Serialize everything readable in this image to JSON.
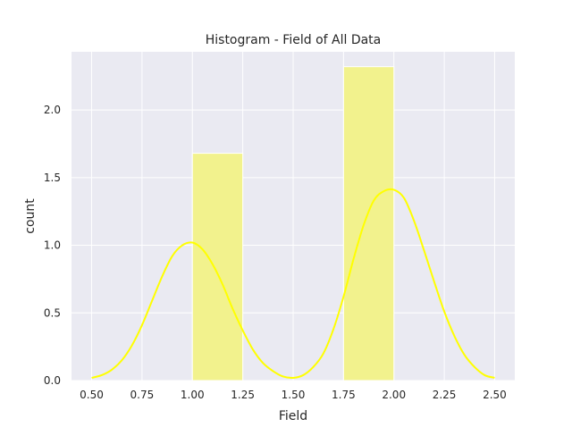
{
  "chart_data": {
    "type": "bar",
    "title": "Histogram - Field of All Data",
    "xlabel": "Field",
    "ylabel": "count",
    "xlim": [
      0.4,
      2.6
    ],
    "ylim": [
      0,
      2.43
    ],
    "grid": true,
    "x_ticks": [
      "0.50",
      "0.75",
      "1.00",
      "1.25",
      "1.50",
      "1.75",
      "2.00",
      "2.25",
      "2.50"
    ],
    "y_ticks": [
      "0.0",
      "0.5",
      "1.0",
      "1.5",
      "2.0"
    ],
    "bins": [
      {
        "x0": 1.0,
        "x1": 1.25,
        "value": 1.68
      },
      {
        "x0": 1.75,
        "x1": 2.0,
        "value": 2.32
      }
    ],
    "kde": {
      "x": [
        0.5,
        0.55,
        0.6,
        0.65,
        0.7,
        0.75,
        0.8,
        0.85,
        0.9,
        0.95,
        1.0,
        1.05,
        1.1,
        1.15,
        1.2,
        1.25,
        1.3,
        1.35,
        1.4,
        1.45,
        1.5,
        1.55,
        1.6,
        1.65,
        1.7,
        1.75,
        1.8,
        1.85,
        1.9,
        1.95,
        2.0,
        2.05,
        2.1,
        2.15,
        2.2,
        2.25,
        2.3,
        2.35,
        2.4,
        2.45,
        2.5
      ],
      "y": [
        0.02,
        0.04,
        0.08,
        0.15,
        0.26,
        0.41,
        0.59,
        0.77,
        0.92,
        1.0,
        1.02,
        0.97,
        0.86,
        0.71,
        0.53,
        0.37,
        0.23,
        0.13,
        0.07,
        0.03,
        0.02,
        0.04,
        0.1,
        0.2,
        0.38,
        0.62,
        0.9,
        1.15,
        1.33,
        1.4,
        1.41,
        1.35,
        1.18,
        0.96,
        0.73,
        0.51,
        0.33,
        0.19,
        0.1,
        0.04,
        0.02
      ]
    },
    "colors": {
      "background": "#eaeaf2",
      "grid": "#ffffff",
      "bar": "#f2f28d",
      "line": "#ffff00"
    }
  }
}
